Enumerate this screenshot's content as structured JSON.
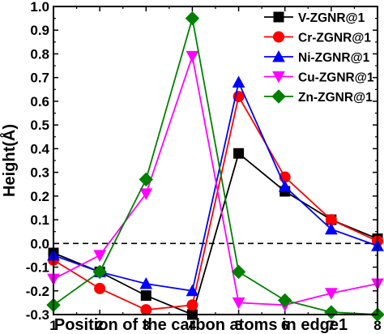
{
  "chart_data": {
    "type": "line",
    "xlabel": "Position of the carbon atoms in edge1",
    "ylabel": "Height(Å)",
    "x": [
      1,
      2,
      3,
      4,
      5,
      6,
      7,
      8
    ],
    "xlim": [
      1,
      8
    ],
    "ylim": [
      -0.3,
      1.0
    ],
    "x_ticks": [
      "1",
      "2",
      "3",
      "4",
      "5",
      "6",
      "7",
      "8"
    ],
    "y_ticks": [
      "-0.3",
      "-0.2",
      "-0.1",
      "0.0",
      "0.1",
      "0.2",
      "0.3",
      "0.4",
      "0.5",
      "0.6",
      "0.7",
      "0.8",
      "0.9",
      "1.0"
    ],
    "reference_line": {
      "y": 0.0,
      "style": "dashed"
    },
    "legend_position": "top-right",
    "series": [
      {
        "name": "V-ZGNR@1",
        "color": "#000000",
        "marker": "square",
        "values": [
          -0.04,
          -0.12,
          -0.22,
          -0.3,
          0.38,
          0.22,
          0.1,
          0.02
        ]
      },
      {
        "name": "Cr-ZGNR@1",
        "color": "#ff0000",
        "marker": "circle",
        "values": [
          -0.07,
          -0.19,
          -0.28,
          -0.26,
          0.62,
          0.28,
          0.1,
          0.01
        ]
      },
      {
        "name": "Ni-ZGNR@1",
        "color": "#0000ff",
        "marker": "triangle-up",
        "values": [
          -0.05,
          -0.12,
          -0.17,
          -0.2,
          0.68,
          0.24,
          0.06,
          -0.01
        ]
      },
      {
        "name": "Cu-ZGNR@1",
        "color": "#ff00ff",
        "marker": "triangle-down",
        "values": [
          -0.15,
          -0.05,
          0.21,
          0.79,
          -0.25,
          -0.26,
          -0.21,
          -0.17
        ]
      },
      {
        "name": "Zn-ZGNR@1",
        "color": "#008000",
        "marker": "diamond",
        "values": [
          -0.26,
          -0.12,
          0.27,
          0.95,
          -0.12,
          -0.24,
          -0.29,
          -0.3
        ]
      }
    ]
  }
}
